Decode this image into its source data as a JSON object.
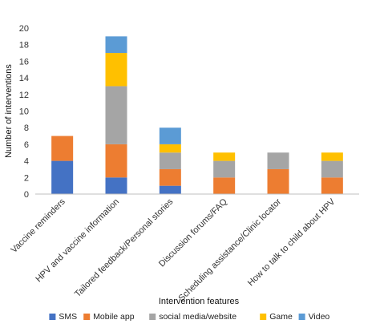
{
  "chart_data": {
    "type": "bar",
    "stacked": true,
    "categories": [
      "Vaccine reminders",
      "HPV and vaccine information",
      "Tailored feedback/Personal stories",
      "Discussion forums/FAQ",
      "Scheduling assistance/Clinic locator",
      "How to talk to child about HPV"
    ],
    "series": [
      {
        "name": "SMS",
        "color": "#4472C4",
        "values": [
          4,
          2,
          1,
          0,
          0,
          0
        ]
      },
      {
        "name": "Mobile app",
        "color": "#ED7D31",
        "values": [
          3,
          4,
          2,
          2,
          3,
          2
        ]
      },
      {
        "name": "social media/website",
        "color": "#A5A5A5",
        "values": [
          0,
          7,
          2,
          2,
          2,
          2
        ]
      },
      {
        "name": "Game",
        "color": "#FFC000",
        "values": [
          0,
          4,
          1,
          1,
          0,
          1
        ]
      },
      {
        "name": "Video",
        "color": "#5B9BD5",
        "values": [
          0,
          2,
          2,
          0,
          0,
          0
        ]
      }
    ],
    "xlabel": "Intervention features",
    "ylabel": "Number of interventions",
    "ylim": [
      0,
      20
    ],
    "yticks": [
      0,
      2,
      4,
      6,
      8,
      10,
      12,
      14,
      16,
      18,
      20
    ],
    "grid": false,
    "legend": "bottom"
  }
}
